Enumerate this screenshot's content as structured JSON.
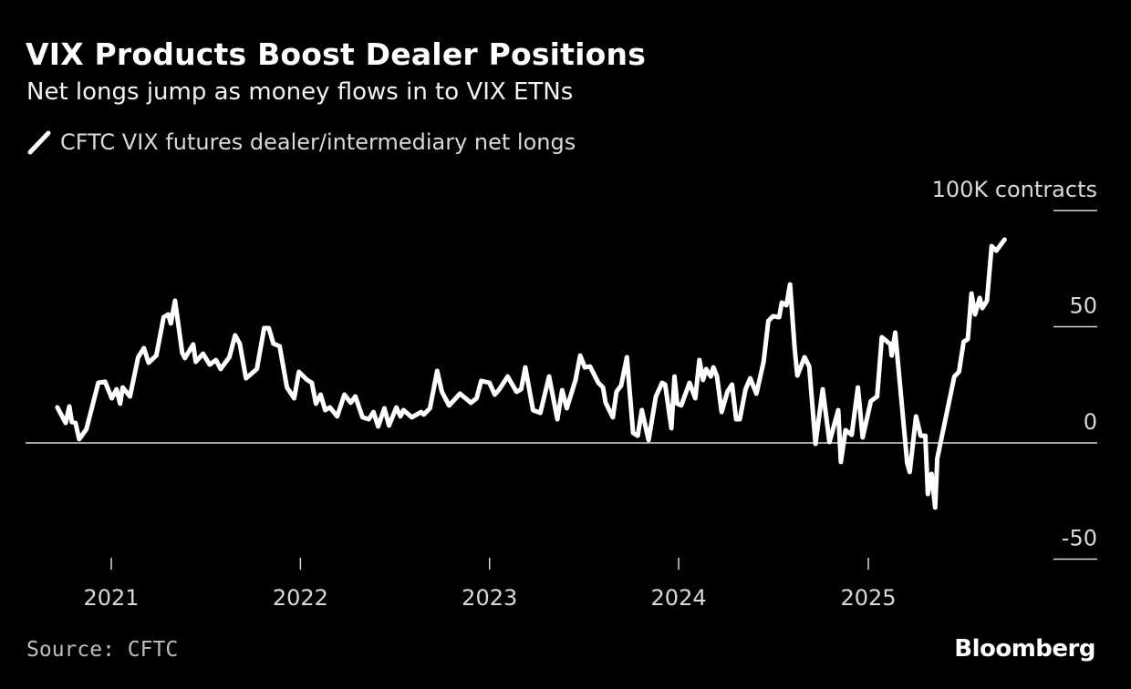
{
  "header": {
    "title": "VIX Products Boost Dealer Positions",
    "subtitle": "Net longs jump as money flows in to VIX ETNs"
  },
  "footer": {
    "source": "Source: CFTC",
    "logo": "Bloomberg"
  },
  "colors": {
    "background": "#000000",
    "line": "#ffffff",
    "axis": "#d9d9d9"
  },
  "chart_data": {
    "type": "line",
    "title": "VIX Products Boost Dealer Positions",
    "subtitle": "Net longs jump as money flows in to VIX ETNs",
    "ylabel": "100K contracts",
    "yticks": [
      {
        "value": 100,
        "label": "100K contracts"
      },
      {
        "value": 50,
        "label": "50"
      },
      {
        "value": 0,
        "label": "0"
      },
      {
        "value": -50,
        "label": "-50"
      }
    ],
    "xticks": [
      "2021",
      "2022",
      "2023",
      "2024",
      "2025"
    ],
    "ylim": [
      -50,
      100
    ],
    "xlim": [
      "2020-09",
      "2025-10"
    ],
    "grid": false,
    "legend_position": "top-left",
    "series": [
      {
        "name": "CFTC VIX futures dealer/intermediary net longs",
        "color": "#ffffff",
        "points": [
          [
            "2020-09-19",
            15.3
          ],
          [
            "2020-10-05",
            8.6
          ],
          [
            "2020-10-12",
            15.7
          ],
          [
            "2020-10-17",
            9
          ],
          [
            "2020-10-24",
            8.6
          ],
          [
            "2020-10-31",
            1.6
          ],
          [
            "2020-11-14",
            5.9
          ],
          [
            "2020-12-07",
            25.9
          ],
          [
            "2020-12-20",
            26.3
          ],
          [
            "2021-01-02",
            19.2
          ],
          [
            "2021-01-11",
            23.1
          ],
          [
            "2021-01-18",
            16.9
          ],
          [
            "2021-01-23",
            23.9
          ],
          [
            "2021-02-06",
            20
          ],
          [
            "2021-02-22",
            36.9
          ],
          [
            "2021-03-05",
            40.8
          ],
          [
            "2021-03-14",
            34.5
          ],
          [
            "2021-03-29",
            37.6
          ],
          [
            "2021-04-12",
            54.1
          ],
          [
            "2021-04-21",
            55.3
          ],
          [
            "2021-04-26",
            51.4
          ],
          [
            "2021-05-04",
            61.2
          ],
          [
            "2021-05-18",
            38.8
          ],
          [
            "2021-05-23",
            36.5
          ],
          [
            "2021-06-08",
            42.4
          ],
          [
            "2021-06-13",
            34.9
          ],
          [
            "2021-06-27",
            38.4
          ],
          [
            "2021-07-10",
            33.7
          ],
          [
            "2021-07-22",
            35.7
          ],
          [
            "2021-07-31",
            31.8
          ],
          [
            "2021-08-17",
            36.9
          ],
          [
            "2021-08-28",
            46.3
          ],
          [
            "2021-09-06",
            42.7
          ],
          [
            "2021-09-18",
            27.8
          ],
          [
            "2021-10-09",
            31.8
          ],
          [
            "2021-10-23",
            49.4
          ],
          [
            "2021-11-01",
            49.4
          ],
          [
            "2021-11-10",
            42.7
          ],
          [
            "2021-11-22",
            41.6
          ],
          [
            "2021-12-06",
            23.9
          ],
          [
            "2021-12-20",
            19.2
          ],
          [
            "2021-12-29",
            30.6
          ],
          [
            "2022-01-14",
            27.1
          ],
          [
            "2022-01-23",
            25.9
          ],
          [
            "2022-01-31",
            16.9
          ],
          [
            "2022-02-09",
            20.8
          ],
          [
            "2022-02-18",
            14.1
          ],
          [
            "2022-02-27",
            15.3
          ],
          [
            "2022-03-13",
            11.4
          ],
          [
            "2022-03-27",
            20.8
          ],
          [
            "2022-04-08",
            17.3
          ],
          [
            "2022-04-17",
            20
          ],
          [
            "2022-05-01",
            11
          ],
          [
            "2022-05-13",
            10.2
          ],
          [
            "2022-05-22",
            13.3
          ],
          [
            "2022-05-31",
            7.1
          ],
          [
            "2022-06-12",
            14.9
          ],
          [
            "2022-06-21",
            7.5
          ],
          [
            "2022-07-05",
            15.3
          ],
          [
            "2022-07-13",
            11.4
          ],
          [
            "2022-07-19",
            14.1
          ],
          [
            "2022-08-04",
            11
          ],
          [
            "2022-08-22",
            13.3
          ],
          [
            "2022-08-27",
            12.2
          ],
          [
            "2022-09-08",
            14.9
          ],
          [
            "2022-09-22",
            31
          ],
          [
            "2022-10-01",
            22
          ],
          [
            "2022-10-15",
            16.1
          ],
          [
            "2022-11-05",
            21.2
          ],
          [
            "2022-11-26",
            17.3
          ],
          [
            "2022-12-07",
            19.2
          ],
          [
            "2022-12-16",
            26.7
          ],
          [
            "2023-01-01",
            25.9
          ],
          [
            "2023-01-11",
            20.8
          ],
          [
            "2023-01-20",
            23.1
          ],
          [
            "2023-02-05",
            28.6
          ],
          [
            "2023-02-22",
            22
          ],
          [
            "2023-03-03",
            23.1
          ],
          [
            "2023-03-11",
            32.5
          ],
          [
            "2023-03-26",
            14.1
          ],
          [
            "2023-04-09",
            12.9
          ],
          [
            "2023-04-26",
            28.6
          ],
          [
            "2023-05-12",
            10.2
          ],
          [
            "2023-05-21",
            22.7
          ],
          [
            "2023-05-30",
            14.9
          ],
          [
            "2023-06-16",
            27.1
          ],
          [
            "2023-06-25",
            37.6
          ],
          [
            "2023-07-04",
            32.5
          ],
          [
            "2023-07-14",
            32.9
          ],
          [
            "2023-07-30",
            25.9
          ],
          [
            "2023-08-08",
            23.9
          ],
          [
            "2023-08-13",
            17.3
          ],
          [
            "2023-08-27",
            11
          ],
          [
            "2023-09-03",
            22
          ],
          [
            "2023-09-12",
            24.7
          ],
          [
            "2023-09-23",
            36.9
          ],
          [
            "2023-10-05",
            4.3
          ],
          [
            "2023-10-14",
            3.1
          ],
          [
            "2023-10-22",
            14.1
          ],
          [
            "2023-11-04",
            1.2
          ],
          [
            "2023-11-18",
            20
          ],
          [
            "2023-11-30",
            25.9
          ],
          [
            "2023-12-06",
            25.1
          ],
          [
            "2023-12-18",
            6.3
          ],
          [
            "2023-12-24",
            28.6
          ],
          [
            "2023-12-29",
            16.9
          ],
          [
            "2024-01-06",
            16.1
          ],
          [
            "2024-01-22",
            25.9
          ],
          [
            "2024-02-02",
            19.2
          ],
          [
            "2024-02-10",
            35.7
          ],
          [
            "2024-02-17",
            27.1
          ],
          [
            "2024-02-23",
            31.8
          ],
          [
            "2024-03-03",
            28.6
          ],
          [
            "2024-03-08",
            32.5
          ],
          [
            "2024-03-15",
            28.6
          ],
          [
            "2024-03-24",
            13.3
          ],
          [
            "2024-04-04",
            22
          ],
          [
            "2024-04-13",
            25.1
          ],
          [
            "2024-04-21",
            10.2
          ],
          [
            "2024-04-28",
            10.2
          ],
          [
            "2024-05-09",
            23.1
          ],
          [
            "2024-05-18",
            27.8
          ],
          [
            "2024-05-30",
            21.2
          ],
          [
            "2024-06-13",
            34.9
          ],
          [
            "2024-06-22",
            52.5
          ],
          [
            "2024-07-01",
            54.5
          ],
          [
            "2024-07-13",
            54.1
          ],
          [
            "2024-07-18",
            60.4
          ],
          [
            "2024-07-27",
            59.2
          ],
          [
            "2024-08-03",
            68.2
          ],
          [
            "2024-08-12",
            40.4
          ],
          [
            "2024-08-17",
            29
          ],
          [
            "2024-08-31",
            36.9
          ],
          [
            "2024-09-09",
            32.9
          ],
          [
            "2024-09-21",
            -0.4
          ],
          [
            "2024-10-05",
            23.1
          ],
          [
            "2024-10-18",
            0.4
          ],
          [
            "2024-11-04",
            14.1
          ],
          [
            "2024-11-09",
            -8.2
          ],
          [
            "2024-11-18",
            5.5
          ],
          [
            "2024-11-30",
            3.5
          ],
          [
            "2024-12-12",
            23.9
          ],
          [
            "2024-12-21",
            2.4
          ],
          [
            "2025-01-06",
            18
          ],
          [
            "2025-01-18",
            20
          ],
          [
            "2025-01-27",
            45.5
          ],
          [
            "2025-02-13",
            42.4
          ],
          [
            "2025-02-15",
            37.6
          ],
          [
            "2025-02-22",
            47.5
          ],
          [
            "2025-03-17",
            -8.6
          ],
          [
            "2025-03-22",
            -12.5
          ],
          [
            "2025-04-03",
            11.4
          ],
          [
            "2025-04-12",
            3.1
          ],
          [
            "2025-04-21",
            3.1
          ],
          [
            "2025-04-26",
            -22
          ],
          [
            "2025-05-03",
            -13.3
          ],
          [
            "2025-05-10",
            -27.8
          ],
          [
            "2025-05-14",
            -6.7
          ],
          [
            "2025-06-16",
            28.6
          ],
          [
            "2025-06-25",
            30.6
          ],
          [
            "2025-07-04",
            43.5
          ],
          [
            "2025-07-12",
            44.7
          ],
          [
            "2025-07-19",
            64.3
          ],
          [
            "2025-07-26",
            55.3
          ],
          [
            "2025-08-04",
            62.4
          ],
          [
            "2025-08-09",
            58
          ],
          [
            "2025-08-18",
            61.2
          ],
          [
            "2025-08-27",
            84.7
          ],
          [
            "2025-09-05",
            82.7
          ],
          [
            "2025-09-21",
            87.5
          ]
        ]
      }
    ]
  }
}
